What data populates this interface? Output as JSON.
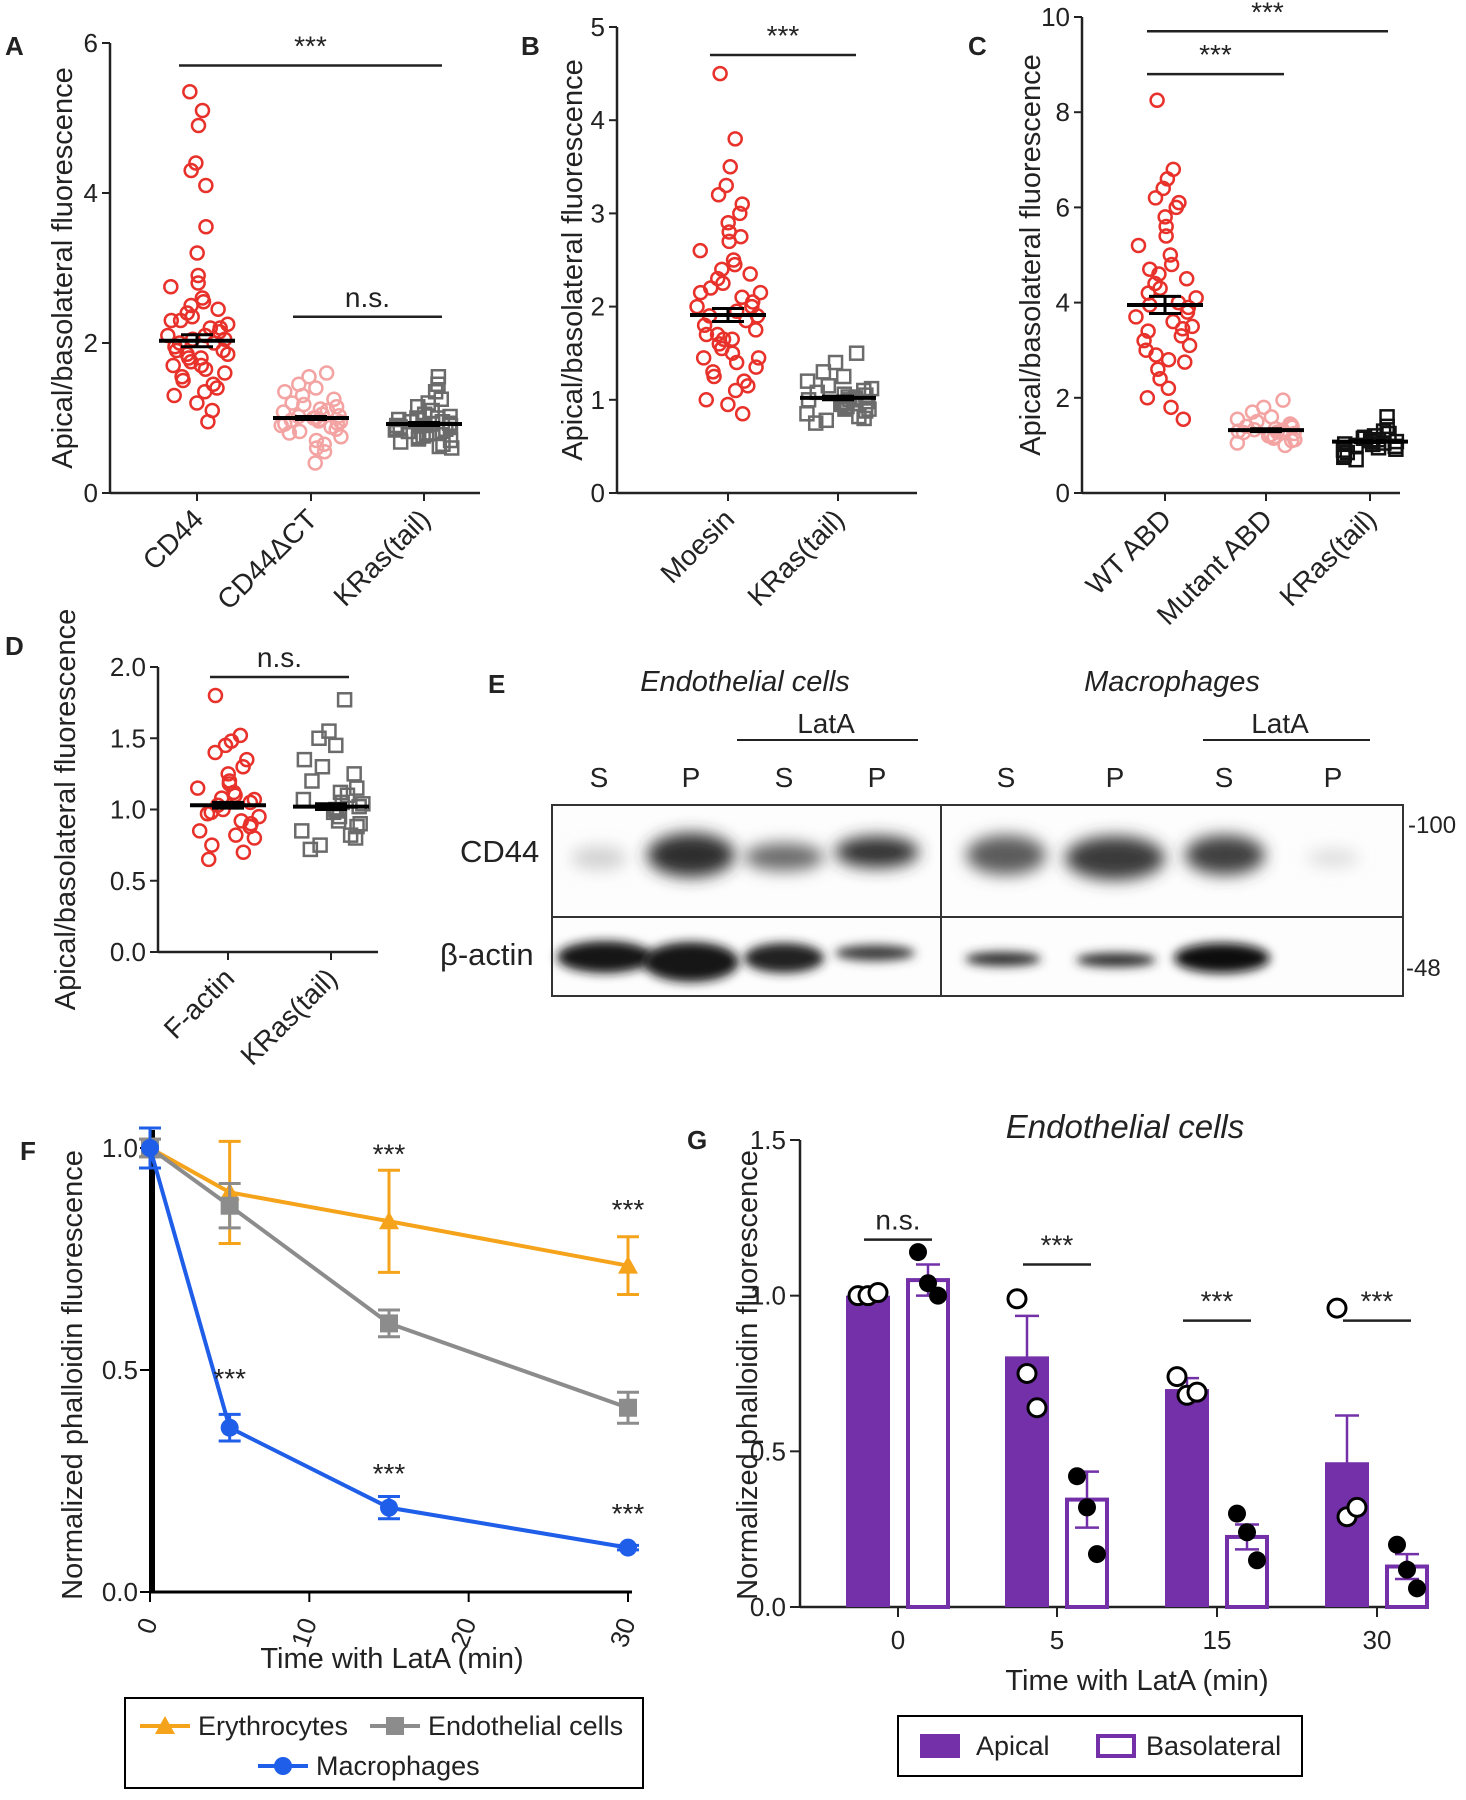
{
  "chart_data": [
    {
      "panel": "A",
      "type": "scatter",
      "ylabel": "Apical/basolateral fluorescence",
      "ylim": [
        0,
        6
      ],
      "yticks": [
        0,
        2,
        4,
        6
      ],
      "categories": [
        "CD44",
        "CD44ΔCT",
        "KRas(tail)"
      ],
      "means": [
        2.03,
        1.0,
        0.92
      ],
      "sems": [
        0.08,
        0.02,
        0.02
      ],
      "colors": [
        "#e8312a",
        "#f4a3a3",
        "#6b6b6b"
      ],
      "markers": [
        "circle",
        "circle",
        "square"
      ],
      "points": [
        [
          5.35,
          5.1,
          4.9,
          4.4,
          4.3,
          4.1,
          3.55,
          3.2,
          2.9,
          2.8,
          2.75,
          2.6,
          2.55,
          2.5,
          2.45,
          2.4,
          2.35,
          2.3,
          2.25,
          2.2,
          2.2,
          2.15,
          2.1,
          2.1,
          2.05,
          2.0,
          2.0,
          1.95,
          1.9,
          1.9,
          1.85,
          1.8,
          1.8,
          1.75,
          1.7,
          1.7,
          1.65,
          1.6,
          1.55,
          1.5,
          1.45,
          1.4,
          1.35,
          1.3,
          1.2,
          1.1,
          0.95,
          2.3,
          2.05,
          1.85
        ],
        [
          1.6,
          1.55,
          1.45,
          1.4,
          1.35,
          1.3,
          1.25,
          1.2,
          1.15,
          1.12,
          1.1,
          1.08,
          1.05,
          1.03,
          1.0,
          1.0,
          0.98,
          0.96,
          0.95,
          0.93,
          0.9,
          0.88,
          0.85,
          0.82,
          0.8,
          0.75,
          0.7,
          0.65,
          0.6,
          0.55,
          0.4,
          1.02,
          0.97,
          0.92,
          1.18
        ],
        [
          1.55,
          1.45,
          1.35,
          1.25,
          1.2,
          1.15,
          1.1,
          1.05,
          1.02,
          1.0,
          0.98,
          0.95,
          0.93,
          0.92,
          0.9,
          0.9,
          0.88,
          0.86,
          0.84,
          0.82,
          0.8,
          0.78,
          0.75,
          0.72,
          0.7,
          0.68,
          0.65,
          0.62,
          0.6,
          0.95,
          0.85,
          0.8,
          1.0,
          0.9,
          0.76
        ]
      ],
      "significance": [
        {
          "label": "***",
          "between": [
            0,
            2
          ],
          "y": 5.7
        },
        {
          "label": "n.s.",
          "between": [
            1,
            2
          ],
          "y": 2.35
        }
      ]
    },
    {
      "panel": "B",
      "type": "scatter",
      "ylabel": "Apical/basolateral fluorescence",
      "ylim": [
        0,
        5
      ],
      "yticks": [
        0,
        1,
        2,
        3,
        4,
        5
      ],
      "categories": [
        "Moesin",
        "KRas(tail)"
      ],
      "means": [
        1.91,
        1.02
      ],
      "sems": [
        0.07,
        0.02
      ],
      "colors": [
        "#e8312a",
        "#6b6b6b"
      ],
      "markers": [
        "circle",
        "square"
      ],
      "points": [
        [
          4.5,
          3.8,
          3.5,
          3.3,
          3.2,
          3.1,
          3.0,
          2.9,
          2.8,
          2.7,
          2.6,
          2.5,
          2.45,
          2.4,
          2.35,
          2.3,
          2.25,
          2.2,
          2.15,
          2.1,
          2.05,
          2.0,
          2.0,
          1.95,
          1.9,
          1.9,
          1.85,
          1.8,
          1.75,
          1.7,
          1.7,
          1.65,
          1.6,
          1.55,
          1.5,
          1.45,
          1.4,
          1.35,
          1.3,
          1.25,
          1.2,
          1.15,
          1.1,
          1.0,
          0.95,
          0.85,
          2.75,
          2.15,
          1.65,
          1.45
        ],
        [
          1.5,
          1.4,
          1.3,
          1.25,
          1.2,
          1.15,
          1.1,
          1.08,
          1.05,
          1.03,
          1.02,
          1.0,
          1.0,
          0.98,
          0.97,
          0.95,
          0.93,
          0.92,
          0.9,
          0.88,
          0.85,
          0.82,
          0.8,
          0.78,
          0.75,
          1.12,
          1.06,
          0.96,
          0.9,
          1.0
        ]
      ],
      "significance": [
        {
          "label": "***",
          "between": [
            0,
            1
          ],
          "y": 4.7
        }
      ]
    },
    {
      "panel": "C",
      "type": "scatter",
      "ylabel": "Apical/basolateral fluorescence",
      "ylim": [
        0,
        10
      ],
      "yticks": [
        0,
        2,
        4,
        6,
        8,
        10
      ],
      "categories": [
        "WT ABD",
        "Mutant ABD",
        "KRas(tail)"
      ],
      "means": [
        3.95,
        1.32,
        1.08
      ],
      "sems": [
        0.18,
        0.03,
        0.02
      ],
      "colors": [
        "#e8312a",
        "#f4a3a3",
        "#111111"
      ],
      "markers": [
        "circle",
        "circle",
        "square"
      ],
      "points": [
        [
          8.25,
          6.8,
          6.6,
          6.4,
          6.2,
          6.1,
          6.0,
          5.8,
          5.6,
          5.4,
          5.2,
          5.0,
          4.8,
          4.6,
          4.5,
          4.4,
          4.3,
          4.2,
          4.1,
          4.0,
          3.9,
          3.8,
          3.7,
          3.6,
          3.5,
          3.4,
          3.3,
          3.2,
          3.1,
          3.0,
          2.9,
          2.8,
          2.6,
          2.4,
          2.2,
          2.0,
          1.8,
          1.55,
          4.7,
          3.95,
          3.45,
          2.75
        ],
        [
          1.95,
          1.8,
          1.7,
          1.6,
          1.55,
          1.5,
          1.45,
          1.4,
          1.38,
          1.35,
          1.32,
          1.3,
          1.28,
          1.25,
          1.22,
          1.2,
          1.18,
          1.15,
          1.12,
          1.1,
          1.05,
          1.0,
          1.42,
          1.33,
          1.27
        ],
        [
          1.6,
          1.4,
          1.3,
          1.25,
          1.2,
          1.15,
          1.12,
          1.1,
          1.08,
          1.05,
          1.03,
          1.0,
          0.98,
          0.95,
          0.92,
          0.9,
          0.85,
          0.8,
          0.75,
          0.7,
          1.07,
          1.02,
          1.17
        ]
      ],
      "significance": [
        {
          "label": "***",
          "between": [
            0,
            2
          ],
          "y": 9.7
        },
        {
          "label": "***",
          "between": [
            0,
            1
          ],
          "y": 8.8
        }
      ]
    },
    {
      "panel": "D",
      "type": "scatter",
      "ylabel": "Apical/basolateral fluorescence",
      "ylim": [
        0,
        2
      ],
      "yticks": [
        "0.0",
        "0.5",
        "1.0",
        "1.5",
        "2.0"
      ],
      "categories": [
        "F-actin",
        "KRas(tail)"
      ],
      "means": [
        1.03,
        1.02
      ],
      "sems": [
        0.02,
        0.02
      ],
      "colors": [
        "#e8312a",
        "#6b6b6b"
      ],
      "markers": [
        "circle",
        "square"
      ],
      "points": [
        [
          1.8,
          1.52,
          1.48,
          1.45,
          1.4,
          1.35,
          1.3,
          1.25,
          1.2,
          1.18,
          1.15,
          1.12,
          1.1,
          1.08,
          1.05,
          1.03,
          1.0,
          0.98,
          0.95,
          0.92,
          0.9,
          0.88,
          0.85,
          0.82,
          0.8,
          0.75,
          0.7,
          0.65,
          1.07,
          0.97
        ],
        [
          1.77,
          1.55,
          1.5,
          1.45,
          1.35,
          1.3,
          1.25,
          1.2,
          1.15,
          1.12,
          1.1,
          1.07,
          1.05,
          1.02,
          1.0,
          0.98,
          0.95,
          0.92,
          0.9,
          0.88,
          0.85,
          0.82,
          0.8,
          0.75,
          0.72,
          1.04,
          0.99
        ]
      ],
      "significance": [
        {
          "label": "n.s.",
          "between": [
            0,
            1
          ],
          "y": 1.93
        }
      ]
    },
    {
      "panel": "F",
      "type": "line",
      "ylabel": "Normalized  phalloidin fluorescence",
      "xlabel": "Time with LatA (min)",
      "xlim": [
        0,
        30
      ],
      "ylim": [
        0,
        1.0
      ],
      "xticks": [
        0,
        10,
        20,
        30
      ],
      "yticks": [
        "0.0",
        "0.5",
        "1.0"
      ],
      "x": [
        0,
        5,
        15,
        30
      ],
      "series": [
        {
          "name": "Erythrocytes",
          "color": "#f5a31a",
          "marker": "triangle",
          "values": [
            1.0,
            0.9,
            0.835,
            0.735
          ],
          "err": [
            0.02,
            0.115,
            0.115,
            0.065
          ]
        },
        {
          "name": "Endothelial cells",
          "color": "#8c8c8c",
          "marker": "square",
          "values": [
            1.0,
            0.87,
            0.605,
            0.415
          ],
          "err": [
            0.02,
            0.05,
            0.03,
            0.035
          ]
        },
        {
          "name": "Macrophages",
          "color": "#1f5ee8",
          "marker": "circle",
          "values": [
            1.0,
            0.37,
            0.19,
            0.1
          ],
          "err": [
            0.045,
            0.03,
            0.025,
            0.005
          ]
        }
      ],
      "annotations": [
        {
          "text": "***",
          "x": 15,
          "y": 0.965
        },
        {
          "text": "***",
          "x": 30,
          "y": 0.84
        },
        {
          "text": "***",
          "x": 5,
          "y": 0.46
        },
        {
          "text": "***",
          "x": 15,
          "y": 0.245
        },
        {
          "text": "***",
          "x": 30,
          "y": 0.155
        }
      ]
    },
    {
      "panel": "G",
      "type": "bar",
      "title": "Endothelial cells",
      "ylabel": "Normalized  phalloidin fluorescence",
      "xlabel": "Time with LatA (min)",
      "ylim": [
        0,
        1.5
      ],
      "yticks": [
        "0.0",
        "0.5",
        "1.0",
        "1.5"
      ],
      "categories": [
        "0",
        "5",
        "15",
        "30"
      ],
      "series": [
        {
          "name": "Apical",
          "color": "#7330a8",
          "values": [
            1.0,
            0.805,
            0.7,
            0.465
          ],
          "err": [
            0.0,
            0.13,
            0.035,
            0.15
          ],
          "points": [
            [
              1.0,
              1.0,
              1.01
            ],
            [
              0.99,
              0.75,
              0.64
            ],
            [
              0.74,
              0.68,
              0.69
            ],
            [
              0.96,
              0.29,
              0.32
            ]
          ]
        },
        {
          "name": "Basolateral",
          "color": "#7330a8",
          "values": [
            1.05,
            0.345,
            0.225,
            0.13
          ],
          "err": [
            0.05,
            0.09,
            0.04,
            0.04
          ],
          "points": [
            [
              1.14,
              1.04,
              1.0
            ],
            [
              0.42,
              0.32,
              0.17
            ],
            [
              0.3,
              0.24,
              0.15
            ],
            [
              0.2,
              0.12,
              0.06
            ]
          ]
        }
      ],
      "significance": [
        {
          "label": "n.s.",
          "group": 0,
          "y": 1.18
        },
        {
          "label": "***",
          "group": 1,
          "y": 1.1
        },
        {
          "label": "***",
          "group": 2,
          "y": 0.92
        },
        {
          "label": "***",
          "group": 3,
          "y": 0.92
        }
      ]
    }
  ],
  "panels": {
    "a": {
      "letter": "A"
    },
    "b": {
      "letter": "B"
    },
    "c": {
      "letter": "C"
    },
    "d": {
      "letter": "D"
    },
    "e": {
      "letter": "E"
    },
    "f": {
      "letter": "F"
    },
    "g": {
      "letter": "G"
    }
  },
  "blot": {
    "group1": "Endothelial cells",
    "group2": "Macrophages",
    "latA": "LatA",
    "lanes": [
      "S",
      "P",
      "S",
      "P",
      "S",
      "P",
      "S",
      "P"
    ],
    "row1": "CD44",
    "row2": "β-actin",
    "mw1": "-100",
    "mw2": "-48"
  }
}
